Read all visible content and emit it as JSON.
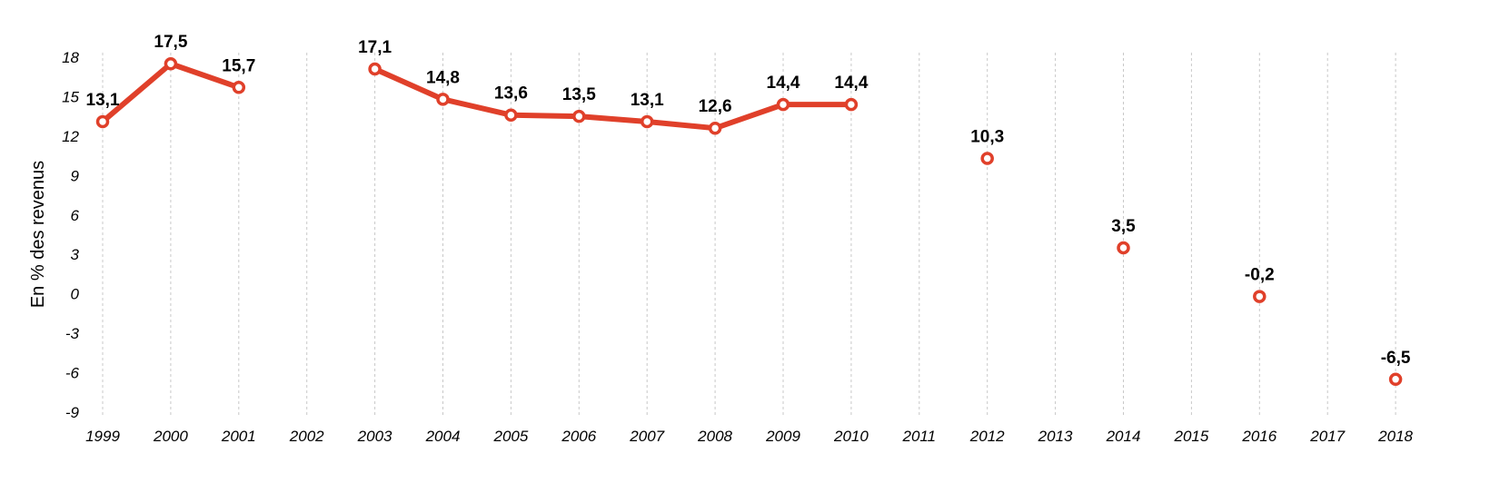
{
  "chart_data": {
    "type": "line",
    "ylabel": "En % des revenus",
    "xlabel": "",
    "ylim": [
      -9,
      18
    ],
    "yticks": [
      18,
      15,
      12,
      9,
      6,
      3,
      0,
      -3,
      -6,
      -9
    ],
    "categories": [
      "1999",
      "2000",
      "2001",
      "2002",
      "2003",
      "2004",
      "2005",
      "2006",
      "2007",
      "2008",
      "2009",
      "2010",
      "2011",
      "2012",
      "2013",
      "2014",
      "2015",
      "2016",
      "2017",
      "2018"
    ],
    "series": [
      {
        "values": [
          13.1,
          17.5,
          15.7,
          null,
          17.1,
          14.8,
          13.6,
          13.5,
          13.1,
          12.6,
          14.4,
          14.4,
          null,
          10.3,
          null,
          3.5,
          null,
          -0.2,
          null,
          -6.5
        ],
        "labels": [
          "13,1",
          "17,5",
          "15,7",
          null,
          "17,1",
          "14,8",
          "13,6",
          "13,5",
          "13,1",
          "12,6",
          "14,4",
          "14,4",
          null,
          "10,3",
          null,
          "3,5",
          null,
          "-0,2",
          null,
          "-6,5"
        ]
      }
    ],
    "grid": "vertical-dashed",
    "colors": {
      "series": "#e0402a",
      "grid": "#c8c8c8"
    }
  }
}
